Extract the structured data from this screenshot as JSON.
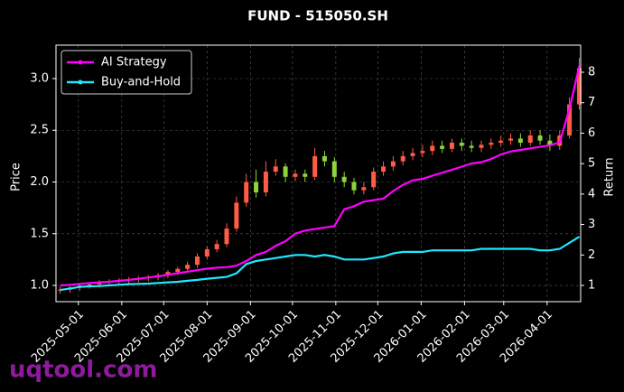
{
  "chart_data": {
    "type": "candlestick_returns",
    "title": "FUND - 515050.SH",
    "ylabel": "Price",
    "y2label": "Return",
    "watermark": "uqtool.com",
    "x": [
      "2025-04-18",
      "2025-04-25",
      "2025-05-02",
      "2025-05-09",
      "2025-05-16",
      "2025-05-23",
      "2025-05-30",
      "2025-06-06",
      "2025-06-13",
      "2025-06-20",
      "2025-06-27",
      "2025-07-04",
      "2025-07-11",
      "2025-07-18",
      "2025-07-25",
      "2025-08-01",
      "2025-08-08",
      "2025-08-15",
      "2025-08-22",
      "2025-08-29",
      "2025-09-05",
      "2025-09-12",
      "2025-09-19",
      "2025-09-26",
      "2025-10-03",
      "2025-10-10",
      "2025-10-17",
      "2025-10-24",
      "2025-10-31",
      "2025-11-07",
      "2025-11-14",
      "2025-11-21",
      "2025-11-28",
      "2025-12-05",
      "2025-12-12",
      "2025-12-19",
      "2025-12-26",
      "2026-01-02",
      "2026-01-09",
      "2026-01-16",
      "2026-01-23",
      "2026-01-30",
      "2026-02-06",
      "2026-02-13",
      "2026-02-20",
      "2026-02-27",
      "2026-03-06",
      "2026-03-13",
      "2026-03-20",
      "2026-03-27",
      "2026-04-03",
      "2026-04-10",
      "2026-04-17",
      "2026-04-24"
    ],
    "open": [
      0.95,
      0.96,
      0.98,
      1.0,
      1.01,
      1.03,
      1.04,
      1.05,
      1.06,
      1.07,
      1.08,
      1.1,
      1.13,
      1.16,
      1.2,
      1.28,
      1.35,
      1.4,
      1.55,
      1.8,
      2.0,
      1.9,
      2.1,
      2.15,
      2.05,
      2.08,
      2.05,
      2.25,
      2.2,
      2.05,
      2.0,
      1.92,
      1.95,
      2.1,
      2.15,
      2.2,
      2.25,
      2.28,
      2.3,
      2.35,
      2.32,
      2.38,
      2.35,
      2.33,
      2.36,
      2.38,
      2.4,
      2.42,
      2.38,
      2.45,
      2.4,
      2.35,
      2.45,
      2.75
    ],
    "high": [
      0.99,
      1.0,
      1.02,
      1.03,
      1.05,
      1.06,
      1.07,
      1.08,
      1.09,
      1.1,
      1.12,
      1.15,
      1.18,
      1.23,
      1.31,
      1.38,
      1.44,
      1.6,
      1.86,
      2.08,
      2.12,
      2.2,
      2.22,
      2.18,
      2.12,
      2.12,
      2.33,
      2.3,
      2.24,
      2.1,
      2.04,
      2.0,
      2.14,
      2.2,
      2.25,
      2.3,
      2.33,
      2.36,
      2.4,
      2.4,
      2.42,
      2.42,
      2.4,
      2.4,
      2.42,
      2.45,
      2.47,
      2.47,
      2.5,
      2.5,
      2.46,
      2.5,
      2.82,
      3.2
    ],
    "low": [
      0.92,
      0.93,
      0.95,
      0.97,
      0.98,
      1.0,
      1.01,
      1.02,
      1.03,
      1.04,
      1.05,
      1.07,
      1.1,
      1.13,
      1.17,
      1.25,
      1.32,
      1.37,
      1.52,
      1.76,
      1.85,
      1.86,
      2.06,
      2.0,
      2.01,
      2.0,
      2.02,
      2.15,
      2.0,
      1.95,
      1.88,
      1.88,
      1.92,
      2.06,
      2.11,
      2.16,
      2.21,
      2.24,
      2.26,
      2.28,
      2.29,
      2.3,
      2.29,
      2.29,
      2.32,
      2.34,
      2.36,
      2.34,
      2.35,
      2.36,
      2.3,
      2.31,
      2.42,
      2.7
    ],
    "close": [
      0.96,
      0.98,
      1.0,
      1.01,
      1.03,
      1.04,
      1.05,
      1.06,
      1.07,
      1.08,
      1.1,
      1.13,
      1.16,
      1.2,
      1.28,
      1.35,
      1.4,
      1.55,
      1.8,
      2.0,
      1.9,
      2.1,
      2.15,
      2.05,
      2.08,
      2.05,
      2.25,
      2.2,
      2.05,
      2.0,
      1.92,
      1.95,
      2.1,
      2.15,
      2.2,
      2.25,
      2.28,
      2.3,
      2.35,
      2.32,
      2.38,
      2.35,
      2.33,
      2.36,
      2.38,
      2.4,
      2.42,
      2.38,
      2.45,
      2.4,
      2.35,
      2.45,
      2.75,
      3.1
    ],
    "up_color": "#ff5c47",
    "down_color": "#8fd43a",
    "series": [
      {
        "name": "AI Strategy",
        "color": "#ff00ff",
        "axis": "y2",
        "values": [
          1.0,
          1.02,
          1.05,
          1.08,
          1.1,
          1.12,
          1.15,
          1.18,
          1.22,
          1.26,
          1.3,
          1.35,
          1.4,
          1.45,
          1.5,
          1.55,
          1.58,
          1.6,
          1.65,
          1.8,
          2.0,
          2.1,
          2.3,
          2.45,
          2.7,
          2.8,
          2.85,
          2.9,
          2.95,
          3.5,
          3.6,
          3.75,
          3.8,
          3.85,
          4.1,
          4.3,
          4.45,
          4.5,
          4.6,
          4.7,
          4.8,
          4.9,
          5.0,
          5.05,
          5.15,
          5.3,
          5.4,
          5.45,
          5.5,
          5.55,
          5.6,
          5.7,
          6.8,
          8.2
        ]
      },
      {
        "name": "Buy-and-Hold",
        "color": "#1ee8ff",
        "axis": "y2",
        "values": [
          0.85,
          0.9,
          0.95,
          0.97,
          0.98,
          1.0,
          1.02,
          1.04,
          1.05,
          1.06,
          1.08,
          1.1,
          1.12,
          1.15,
          1.18,
          1.22,
          1.25,
          1.28,
          1.4,
          1.7,
          1.8,
          1.85,
          1.9,
          1.95,
          2.0,
          2.0,
          1.95,
          2.0,
          1.95,
          1.85,
          1.85,
          1.85,
          1.9,
          1.95,
          2.05,
          2.1,
          2.1,
          2.1,
          2.15,
          2.15,
          2.15,
          2.15,
          2.15,
          2.2,
          2.2,
          2.2,
          2.2,
          2.2,
          2.2,
          2.15,
          2.15,
          2.2,
          2.4,
          2.6
        ]
      }
    ],
    "xlim": [
      "2025-04-15",
      "2026-04-25"
    ],
    "xticks": [
      "2025-05-01",
      "2025-06-01",
      "2025-07-01",
      "2025-08-01",
      "2025-09-01",
      "2025-10-01",
      "2025-11-01",
      "2025-12-01",
      "2026-01-01",
      "2026-02-01",
      "2026-03-01",
      "2026-04-01"
    ],
    "ylim": [
      0.843,
      3.323
    ],
    "yticks": [
      {
        "value": 1,
        "label": "1.0"
      },
      1.5,
      {
        "value": 2,
        "label": "2.0"
      },
      2.5,
      {
        "value": 3,
        "label": "3.0"
      }
    ],
    "y2lim": [
      0.466,
      8.89
    ],
    "y2ticks": [
      1,
      2,
      3,
      4,
      5,
      6,
      7,
      8
    ],
    "grid": true,
    "legend": "upper left"
  }
}
